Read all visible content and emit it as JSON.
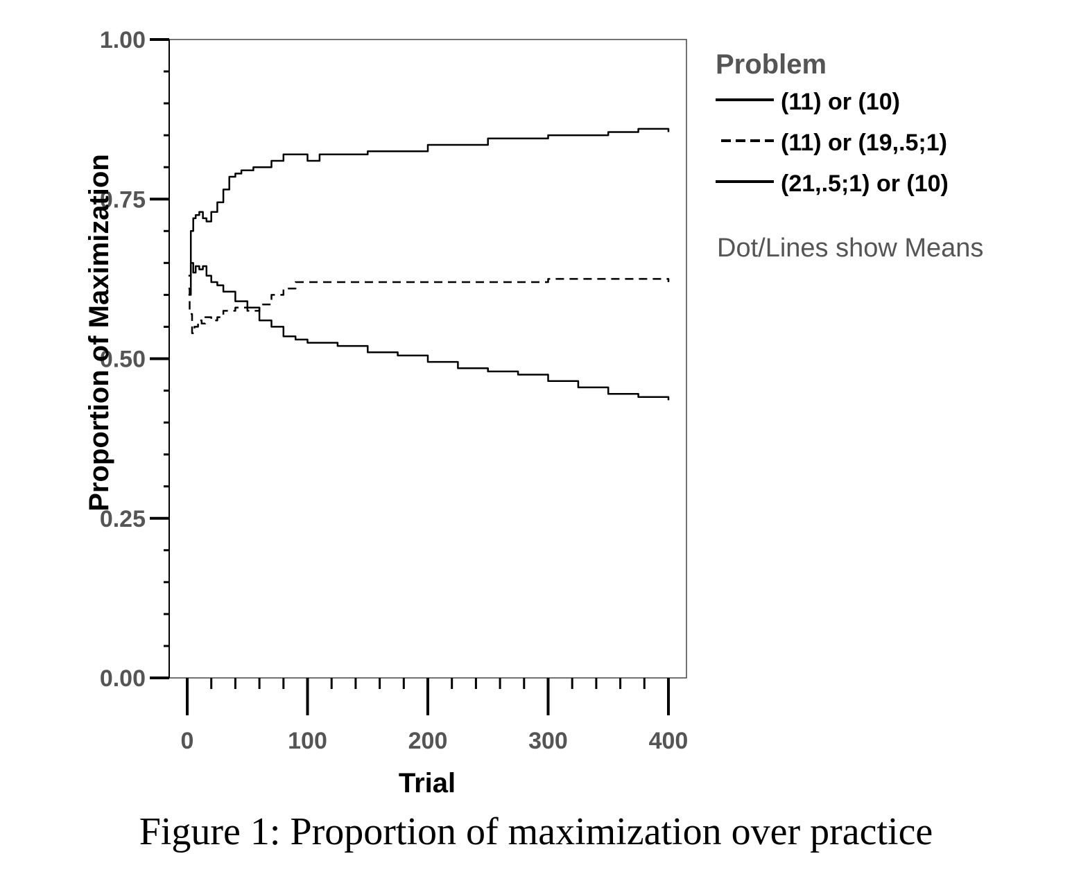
{
  "chart_data": {
    "type": "line",
    "xlabel": "Trial",
    "ylabel": "Proportion of Maximization",
    "xlim": [
      -15,
      415
    ],
    "ylim": [
      0,
      1
    ],
    "x_ticks": [
      "0",
      "100",
      "200",
      "300",
      "400"
    ],
    "y_ticks": [
      "0.00",
      "0.25",
      "0.50",
      "0.75",
      "1.00"
    ],
    "grid": false,
    "legend": {
      "title": "Problem",
      "placement": "right",
      "note": "Dot/Lines show Means"
    },
    "series": [
      {
        "name": "(11) or (10)",
        "style": "solid",
        "color": "#000000",
        "x": [
          1,
          3,
          5,
          7,
          10,
          13,
          16,
          20,
          25,
          30,
          35,
          40,
          45,
          50,
          55,
          60,
          70,
          80,
          90,
          100,
          110,
          120,
          150,
          200,
          250,
          300,
          350,
          375,
          400
        ],
        "y": [
          0.63,
          0.7,
          0.72,
          0.725,
          0.73,
          0.72,
          0.715,
          0.73,
          0.745,
          0.765,
          0.785,
          0.79,
          0.795,
          0.795,
          0.8,
          0.8,
          0.81,
          0.82,
          0.82,
          0.81,
          0.82,
          0.82,
          0.825,
          0.835,
          0.845,
          0.85,
          0.855,
          0.86,
          0.855
        ]
      },
      {
        "name": "(11) or (19,.5;1)",
        "style": "dashed",
        "color": "#000000",
        "x": [
          1,
          2,
          4,
          6,
          9,
          12,
          15,
          20,
          25,
          30,
          40,
          50,
          60,
          70,
          80,
          90,
          100,
          110,
          150,
          200,
          250,
          300,
          350,
          400
        ],
        "y": [
          0.61,
          0.57,
          0.54,
          0.55,
          0.56,
          0.555,
          0.565,
          0.56,
          0.565,
          0.575,
          0.58,
          0.575,
          0.585,
          0.6,
          0.61,
          0.62,
          0.62,
          0.62,
          0.62,
          0.62,
          0.62,
          0.625,
          0.625,
          0.62
        ]
      },
      {
        "name": "(21,.5;1) or (10)",
        "style": "solid",
        "color": "#000000",
        "x": [
          1,
          3,
          5,
          7,
          10,
          13,
          16,
          20,
          25,
          30,
          40,
          50,
          60,
          70,
          80,
          90,
          100,
          125,
          150,
          175,
          200,
          225,
          250,
          275,
          300,
          325,
          350,
          375,
          400
        ],
        "y": [
          0.6,
          0.65,
          0.635,
          0.645,
          0.64,
          0.645,
          0.63,
          0.62,
          0.615,
          0.605,
          0.59,
          0.58,
          0.56,
          0.55,
          0.535,
          0.53,
          0.525,
          0.52,
          0.51,
          0.505,
          0.495,
          0.485,
          0.48,
          0.475,
          0.465,
          0.455,
          0.445,
          0.44,
          0.435
        ]
      }
    ]
  },
  "caption": "Figure 1: Proportion of maximization over practice"
}
